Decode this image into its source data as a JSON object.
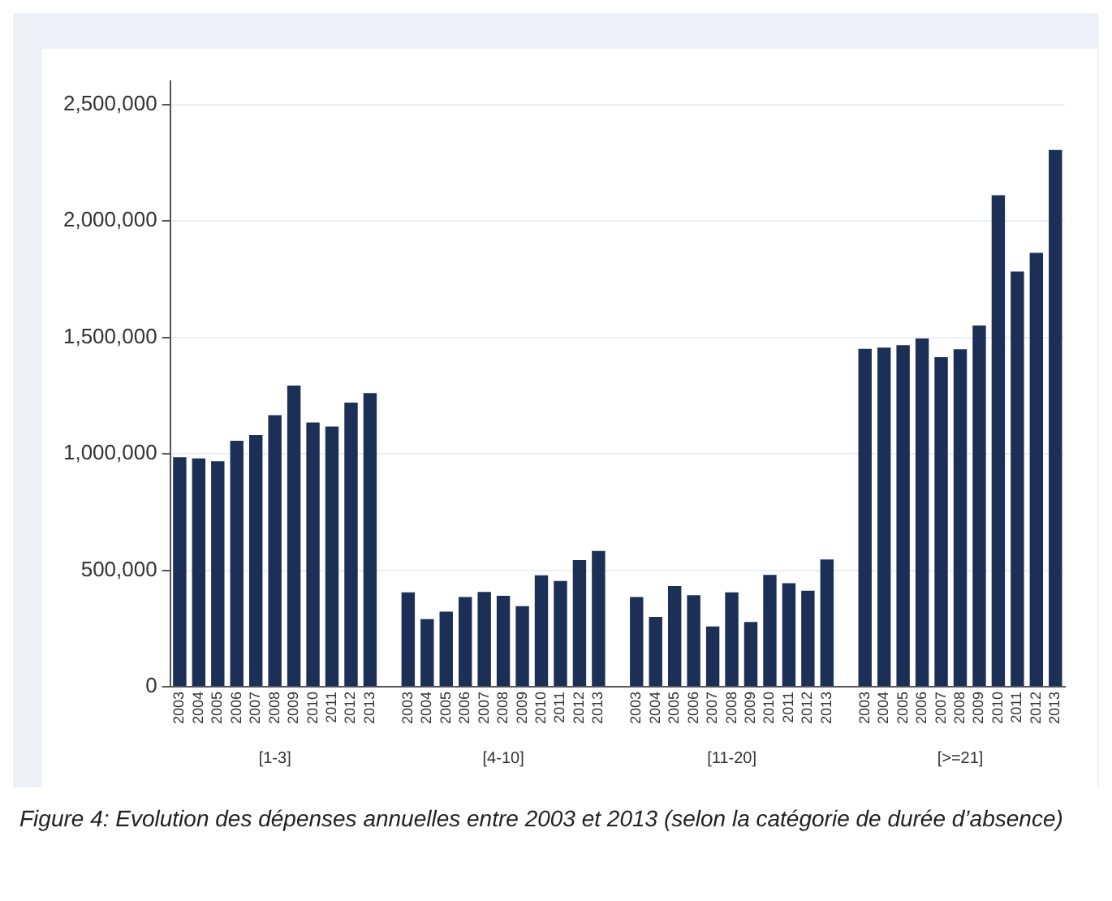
{
  "chart_data": {
    "type": "bar",
    "categories": [
      "2003",
      "2004",
      "2005",
      "2006",
      "2007",
      "2008",
      "2009",
      "2010",
      "2011",
      "2012",
      "2013",
      null,
      "2003",
      "2004",
      "2005",
      "2006",
      "2007",
      "2008",
      "2009",
      "2010",
      "2011",
      "2012",
      "2013",
      null,
      "2003",
      "2004",
      "2005",
      "2006",
      "2007",
      "2008",
      "2009",
      "2010",
      "2011",
      "2012",
      "2013",
      null,
      "2003",
      "2004",
      "2005",
      "2006",
      "2007",
      "2008",
      "2009",
      "2010",
      "2011",
      "2012",
      "2013"
    ],
    "values": [
      985000,
      980000,
      968000,
      1056000,
      1080000,
      1166000,
      1293000,
      1134000,
      1117000,
      1220000,
      1261000,
      null,
      405000,
      290000,
      322000,
      385000,
      407000,
      390000,
      346000,
      478000,
      454000,
      544000,
      583000,
      null,
      385000,
      300000,
      432000,
      393000,
      259000,
      405000,
      278000,
      480000,
      444000,
      412000,
      546000,
      null,
      1451000,
      1456000,
      1466000,
      1495000,
      1415000,
      1449000,
      1551000,
      2110000,
      1783000,
      1863000,
      2305000
    ],
    "color": "#1c2f56",
    "ylim": [
      0,
      2600000
    ],
    "yticks": [
      {
        "value": 0,
        "label": "0"
      },
      {
        "value": 500000,
        "label": "500,000"
      },
      {
        "value": 1000000,
        "label": "1,000,000"
      },
      {
        "value": 1500000,
        "label": "1,500,000"
      },
      {
        "value": 2000000,
        "label": "2,000,000"
      },
      {
        "value": 2500000,
        "label": "2,500,000"
      }
    ],
    "grid": "y",
    "annotations": [
      "[1-3]",
      "[4-10]",
      "[11-20]",
      "[>=21]",
      "Figure 4: Evolution des dépenses annuelles entre 2003 et 2013 (selon la catégorie de durée d’absence)"
    ]
  }
}
